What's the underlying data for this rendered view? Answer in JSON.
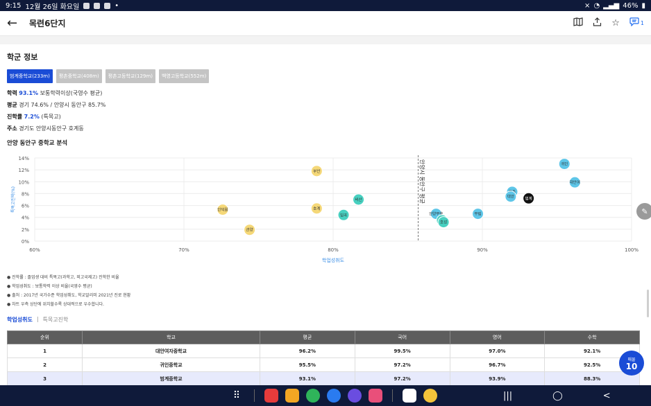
{
  "status": {
    "time": "9:15",
    "date": "12월 26일 화요일",
    "battery": "46%"
  },
  "header": {
    "title": "목련6단지",
    "comment_count": "1"
  },
  "section_title": "학군 정보",
  "school_tabs": [
    "범계중학교(233m)",
    "평촌중학교(408m)",
    "평촌고등학교(129m)",
    "백영고등학교(552m)"
  ],
  "info": {
    "achievement_label": "학력",
    "achievement_value": "93.1%",
    "achievement_desc": "보통학력이상(국영수 평균)",
    "avg_label": "평균",
    "avg_value": "경기 74.6% / 안양시 동안구 85.7%",
    "advance_label": "진학률",
    "advance_value": "7.2%",
    "advance_desc": "(특목고)",
    "address_label": "주소",
    "address_value": "경기도 안양시동안구 호계동"
  },
  "chart_title": "안양 동안구 중학교 분석",
  "chart_data": {
    "type": "scatter",
    "xlabel": "학업성취도",
    "ylabel": "특목고진학(%)",
    "xlim": [
      60,
      100
    ],
    "ylim": [
      0,
      14
    ],
    "x_ticks": [
      "60%",
      "70%",
      "80%",
      "90%",
      "100%"
    ],
    "y_ticks": [
      "0%",
      "2%",
      "4%",
      "6%",
      "8%",
      "10%",
      "12%",
      "14%"
    ],
    "avg_line": {
      "x": 85.7,
      "label": "안양시 동안구 평균"
    },
    "points": [
      {
        "name": "귀인",
        "x": 95.5,
        "y": 13.0,
        "color": "#5ec6e8"
      },
      {
        "name": "대안여",
        "x": 96.2,
        "y": 9.9,
        "color": "#5ec6e8"
      },
      {
        "name": "범계",
        "x": 93.1,
        "y": 7.2,
        "color": "#111111"
      },
      {
        "name": "평촌",
        "x": 92.0,
        "y": 8.3,
        "color": "#5ec6e8"
      },
      {
        "name": "대안",
        "x": 91.9,
        "y": 7.5,
        "color": "#5ec6e8"
      },
      {
        "name": "부림",
        "x": 89.7,
        "y": 4.6,
        "color": "#5ec6e8"
      },
      {
        "name": "안양부흥",
        "x": 86.9,
        "y": 4.6,
        "color": "#5ec6e8"
      },
      {
        "name": "신기",
        "x": 87.3,
        "y": 3.5,
        "color": "#48d0c0"
      },
      {
        "name": "호성",
        "x": 87.4,
        "y": 3.2,
        "color": "#48d0c0"
      },
      {
        "name": "비산",
        "x": 81.7,
        "y": 7.0,
        "color": "#48d0c0"
      },
      {
        "name": "임곡",
        "x": 80.7,
        "y": 4.4,
        "color": "#48d0c0"
      },
      {
        "name": "부안",
        "x": 78.9,
        "y": 11.8,
        "color": "#f5d878"
      },
      {
        "name": "호계",
        "x": 78.9,
        "y": 5.5,
        "color": "#f5d878"
      },
      {
        "name": "인덕원",
        "x": 72.6,
        "y": 5.3,
        "color": "#f5d878"
      },
      {
        "name": "관양",
        "x": 74.4,
        "y": 1.9,
        "color": "#f5d878"
      }
    ]
  },
  "notes": [
    "진학률 : 졸업생 대비 특목고(과학고, 외고국제고) 진학한 비율",
    "학업성취도 : 보통학력 이상 비율(국영수 평균)",
    "출처 : 2017년 국가수준 학업성취도, 학교알리미 2021년 진로 현황",
    "차트 우측 상단에 위치할수록 상대적으로 우수합니다."
  ],
  "bottom_tabs": [
    "학업성취도",
    "특목고진학"
  ],
  "table": {
    "headers": [
      "순위",
      "학교",
      "평균",
      "국어",
      "영어",
      "수학"
    ],
    "rows": [
      [
        "1",
        "대안여자중학교",
        "96.2%",
        "99.5%",
        "97.0%",
        "92.1%"
      ],
      [
        "2",
        "귀인중학교",
        "95.5%",
        "97.2%",
        "96.7%",
        "92.5%"
      ],
      [
        "3",
        "범계중학교",
        "93.1%",
        "97.2%",
        "93.9%",
        "88.3%"
      ]
    ]
  },
  "fab": {
    "small": "매물",
    "number": "10"
  }
}
